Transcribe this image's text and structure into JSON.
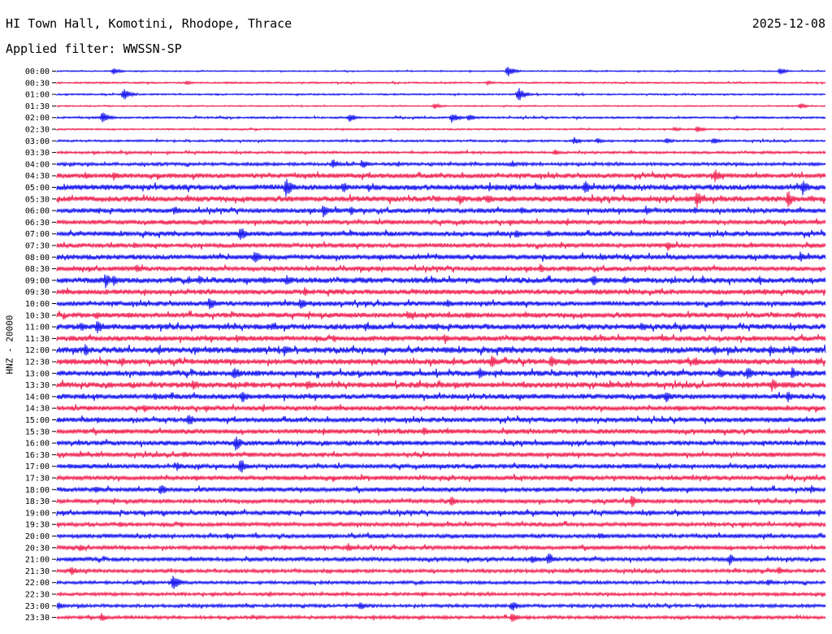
{
  "header": {
    "station": "HI Town Hall, Komotini, Rhodope, Thrace",
    "date": "2025-12-08",
    "filter_prefix": "Applied filter:",
    "filter_name": "WWSSN-SP"
  },
  "chart_data": {
    "type": "helicorder",
    "title": "HI Town Hall, Komotini, Rhodope, Thrace",
    "ylabel": "HNZ - 20000",
    "trace_colors": [
      "#0000ee",
      "#ee1144"
    ],
    "times": [
      "00:00",
      "00:30",
      "01:00",
      "01:30",
      "02:00",
      "02:30",
      "03:00",
      "03:30",
      "04:00",
      "04:30",
      "05:00",
      "05:30",
      "06:00",
      "06:30",
      "07:00",
      "07:30",
      "08:00",
      "08:30",
      "09:00",
      "09:30",
      "10:00",
      "10:30",
      "11:00",
      "11:30",
      "12:00",
      "12:30",
      "13:00",
      "13:30",
      "14:00",
      "14:30",
      "15:00",
      "15:30",
      "16:00",
      "16:30",
      "17:00",
      "17:30",
      "18:00",
      "18:30",
      "19:00",
      "19:30",
      "20:00",
      "20:30",
      "21:00",
      "21:30",
      "22:00",
      "22:30",
      "23:00",
      "23:30"
    ],
    "noise_level": [
      0.8,
      1,
      1,
      0.8,
      1.2,
      1,
      1.3,
      1.5,
      2,
      3,
      3.5,
      3.5,
      3,
      2.8,
      3,
      2.8,
      3.2,
      3,
      3.5,
      3.2,
      3,
      3.2,
      3.5,
      3.3,
      3.8,
      3.5,
      3.5,
      3.5,
      3.3,
      3,
      3,
      3,
      3,
      2.8,
      2.8,
      2.8,
      2.8,
      2.5,
      2.8,
      2.5,
      2.5,
      2.5,
      2.5,
      2.2,
      2,
      2,
      2,
      2
    ],
    "events": [
      [
        [
          140,
          5
        ],
        [
          625,
          8
        ],
        [
          960,
          5
        ]
      ],
      [
        [
          230,
          3
        ],
        [
          600,
          3
        ]
      ],
      [
        [
          152,
          9
        ],
        [
          638,
          10
        ]
      ],
      [
        [
          535,
          4
        ],
        [
          985,
          4
        ]
      ],
      [
        [
          126,
          9
        ],
        [
          430,
          6
        ],
        [
          556,
          7
        ],
        [
          577,
          5
        ]
      ],
      [
        [
          858,
          5
        ],
        [
          830,
          3
        ]
      ],
      [
        [
          707,
          5
        ],
        [
          735,
          4
        ],
        [
          820,
          4
        ],
        [
          878,
          5
        ]
      ],
      [
        [
          683,
          4
        ]
      ],
      [
        [
          410,
          7
        ],
        [
          446,
          7
        ],
        [
          630,
          5
        ]
      ],
      [
        [
          105,
          5
        ],
        [
          140,
          6
        ],
        [
          880,
          9
        ]
      ],
      [
        [
          352,
          13
        ],
        [
          422,
          8
        ],
        [
          720,
          9
        ],
        [
          988,
          12
        ]
      ],
      [
        [
          565,
          8
        ],
        [
          600,
          7
        ],
        [
          857,
          12
        ],
        [
          970,
          11
        ]
      ],
      [
        [
          215,
          7
        ],
        [
          398,
          9
        ],
        [
          432,
          6
        ],
        [
          642,
          5
        ],
        [
          795,
          6
        ],
        [
          855,
          5
        ]
      ],
      [
        [
          250,
          5
        ],
        [
          570,
          4
        ]
      ],
      [
        [
          296,
          10
        ],
        [
          635,
          7
        ],
        [
          675,
          5
        ]
      ],
      [
        [
          165,
          4
        ],
        [
          822,
          7
        ]
      ],
      [
        [
          313,
          9
        ],
        [
          740,
          5
        ],
        [
          985,
          7
        ]
      ],
      [
        [
          168,
          6
        ],
        [
          665,
          6
        ],
        [
          700,
          5
        ]
      ],
      [
        [
          130,
          10
        ],
        [
          140,
          8
        ],
        [
          245,
          7
        ],
        [
          325,
          6
        ],
        [
          353,
          8
        ],
        [
          730,
          8
        ],
        [
          768,
          6
        ]
      ],
      [
        [
          178,
          5
        ],
        [
          375,
          6
        ],
        [
          940,
          5
        ]
      ],
      [
        [
          258,
          10
        ],
        [
          370,
          8
        ],
        [
          550,
          6
        ],
        [
          888,
          5
        ]
      ],
      [
        [
          118,
          6
        ],
        [
          502,
          7
        ],
        [
          575,
          6
        ]
      ],
      [
        [
          100,
          7
        ],
        [
          120,
          10
        ],
        [
          335,
          6
        ],
        [
          450,
          6
        ],
        [
          790,
          7
        ]
      ],
      [
        [
          180,
          5
        ],
        [
          292,
          6
        ],
        [
          548,
          7
        ],
        [
          815,
          6
        ]
      ],
      [
        [
          105,
          8
        ],
        [
          240,
          6
        ],
        [
          350,
          8
        ],
        [
          880,
          6
        ],
        [
          948,
          8
        ],
        [
          975,
          7
        ]
      ],
      [
        [
          150,
          6
        ],
        [
          605,
          9
        ],
        [
          678,
          8
        ],
        [
          700,
          6
        ],
        [
          855,
          7
        ],
        [
          1005,
          6
        ]
      ],
      [
        [
          288,
          10
        ],
        [
          590,
          8
        ],
        [
          885,
          8
        ],
        [
          920,
          9
        ],
        [
          975,
          9
        ]
      ],
      [
        [
          238,
          8
        ],
        [
          380,
          6
        ],
        [
          560,
          5
        ],
        [
          950,
          9
        ]
      ],
      [
        [
          190,
          6
        ],
        [
          298,
          9
        ],
        [
          820,
          8
        ],
        [
          970,
          8
        ],
        [
          915,
          5
        ]
      ],
      [
        [
          178,
          6
        ],
        [
          560,
          5
        ]
      ],
      [
        [
          232,
          9
        ],
        [
          120,
          5
        ]
      ],
      [
        [
          398,
          5
        ],
        [
          522,
          6
        ]
      ],
      [
        [
          290,
          11
        ],
        [
          740,
          5
        ]
      ],
      [
        [
          226,
          5
        ],
        [
          950,
          4
        ]
      ],
      [
        [
          218,
          6
        ],
        [
          296,
          10
        ]
      ],
      [
        [
          430,
          3
        ],
        [
          545,
          3
        ]
      ],
      [
        [
          118,
          5
        ],
        [
          198,
          8
        ],
        [
          660,
          4
        ],
        [
          998,
          6
        ]
      ],
      [
        [
          555,
          7
        ],
        [
          778,
          9
        ]
      ],
      [
        [
          430,
          4
        ],
        [
          800,
          4
        ],
        [
          1008,
          5
        ]
      ],
      [
        [
          148,
          4
        ],
        [
          520,
          4
        ],
        [
          985,
          4
        ]
      ],
      [
        [
          280,
          4
        ],
        [
          738,
          5
        ]
      ],
      [
        [
          98,
          5
        ],
        [
          320,
          6
        ],
        [
          428,
          7
        ],
        [
          350,
          4
        ]
      ],
      [
        [
          655,
          6
        ],
        [
          675,
          9
        ],
        [
          898,
          8
        ]
      ],
      [
        [
          88,
          7
        ],
        [
          958,
          6
        ]
      ],
      [
        [
          213,
          11
        ],
        [
          945,
          5
        ]
      ],
      [
        [
          520,
          4
        ]
      ],
      [
        [
          72,
          5
        ],
        [
          443,
          6
        ],
        [
          630,
          8
        ]
      ],
      [
        [
          125,
          6
        ],
        [
          630,
          7
        ],
        [
          930,
          4
        ]
      ]
    ]
  }
}
